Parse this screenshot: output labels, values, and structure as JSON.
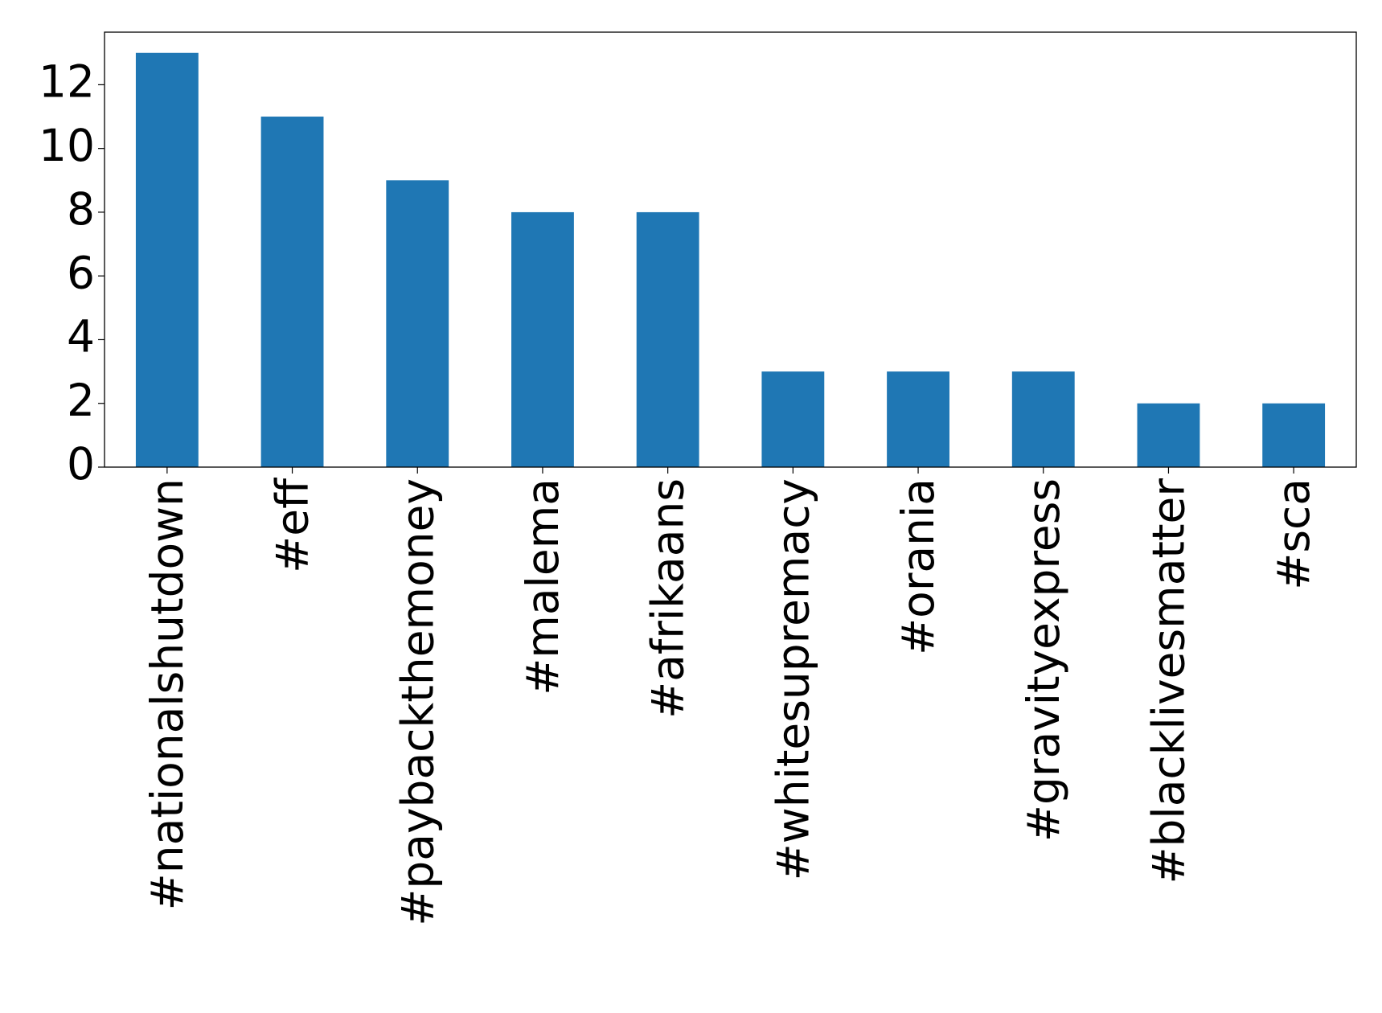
{
  "chart_data": {
    "type": "bar",
    "categories": [
      "#nationalshutdown",
      "#eff",
      "#paybackthemoney",
      "#malema",
      "#afrikaans",
      "#whitesupremacy",
      "#orania",
      "#gravityexpress",
      "#blacklivesmatter",
      "#sca"
    ],
    "values": [
      13,
      11,
      9,
      8,
      8,
      3,
      3,
      3,
      2,
      2
    ],
    "color": "#1f77b4",
    "ylim": [
      0,
      13.65
    ],
    "yticks": [
      0,
      2,
      4,
      6,
      8,
      10,
      12
    ],
    "grid": false
  }
}
